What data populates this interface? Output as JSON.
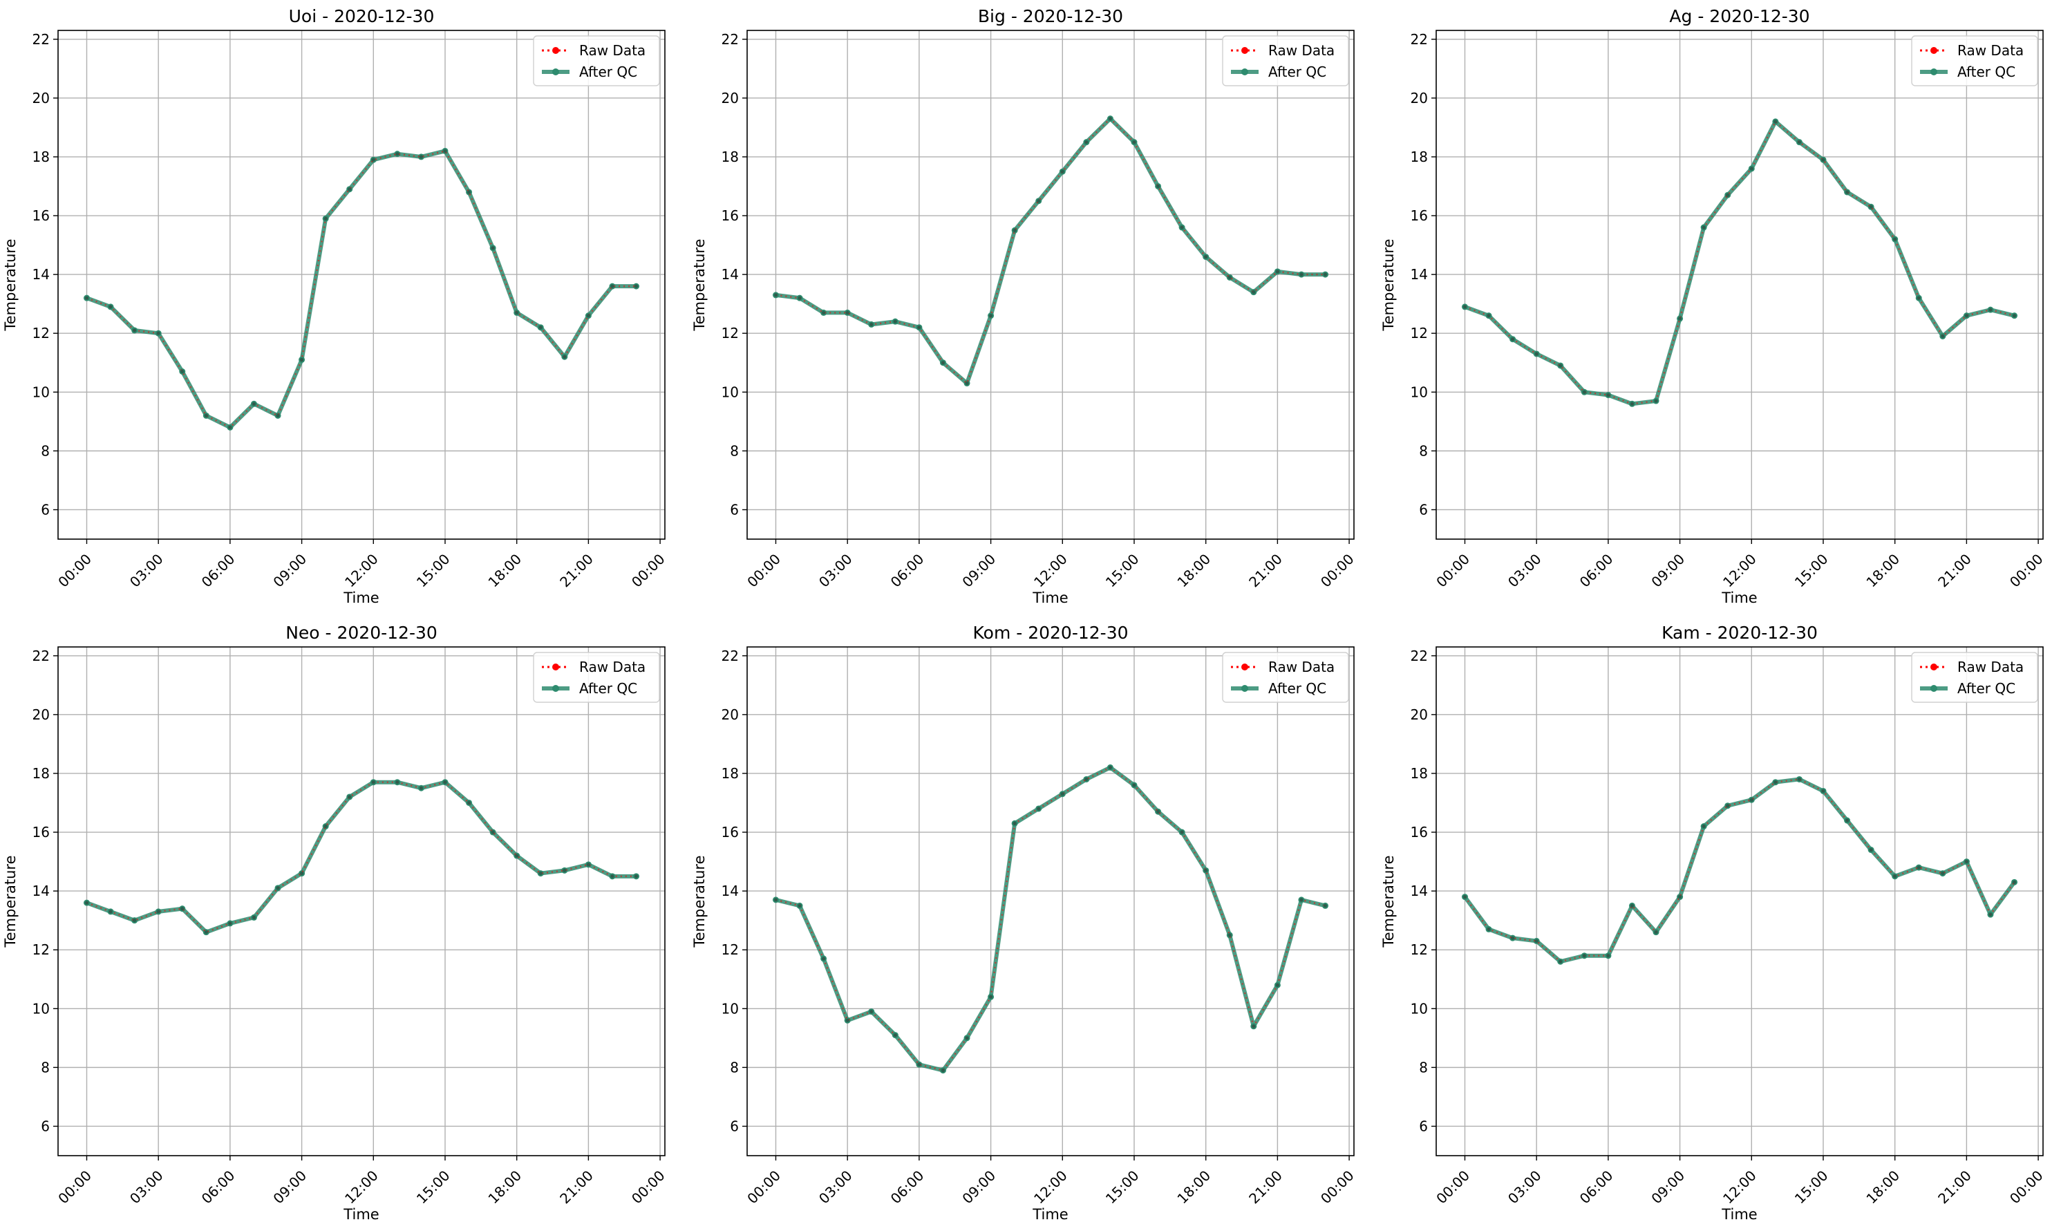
{
  "figure": {
    "layout": "2x3 grid",
    "background": "#ffffff",
    "raw_color": "#ff0000",
    "qc_color": "#2e8b6e",
    "grid_color": "#b0b0b0"
  },
  "chart_data": [
    {
      "type": "line",
      "title": "Uoi - 2020-12-30",
      "xlabel": "Time",
      "ylabel": "Temperature",
      "x_ticks": [
        "00:00",
        "03:00",
        "06:00",
        "09:00",
        "12:00",
        "15:00",
        "18:00",
        "21:00",
        "00:00"
      ],
      "y_ticks": [
        "6",
        "8",
        "10",
        "12",
        "14",
        "16",
        "18",
        "20",
        "22"
      ],
      "xlim": [
        -1.2,
        24.2
      ],
      "ylim": [
        5,
        22.3
      ],
      "grid": true,
      "legend_position": "top-right",
      "x": [
        0,
        1,
        2,
        3,
        4,
        5,
        6,
        7,
        8,
        9,
        10,
        11,
        12,
        13,
        14,
        15,
        16,
        17,
        18,
        19,
        20,
        21,
        22,
        23
      ],
      "series": [
        {
          "name": "Raw Data",
          "style": "dotted red with markers",
          "values": [
            13.2,
            12.9,
            12.1,
            12.0,
            10.7,
            9.2,
            8.8,
            9.6,
            9.2,
            11.1,
            15.9,
            16.9,
            17.9,
            18.1,
            18.0,
            18.2,
            16.8,
            14.9,
            12.7,
            12.2,
            11.2,
            12.6,
            13.6,
            13.6
          ]
        },
        {
          "name": "After QC",
          "style": "solid green with markers",
          "values": [
            13.2,
            12.9,
            12.1,
            12.0,
            10.7,
            9.2,
            8.8,
            9.6,
            9.2,
            11.1,
            15.9,
            16.9,
            17.9,
            18.1,
            18.0,
            18.2,
            16.8,
            14.9,
            12.7,
            12.2,
            11.2,
            12.6,
            13.6,
            13.6
          ]
        }
      ]
    },
    {
      "type": "line",
      "title": "Big - 2020-12-30",
      "xlabel": "Time",
      "ylabel": "Temperature",
      "x_ticks": [
        "00:00",
        "03:00",
        "06:00",
        "09:00",
        "12:00",
        "15:00",
        "18:00",
        "21:00",
        "00:00"
      ],
      "y_ticks": [
        "6",
        "8",
        "10",
        "12",
        "14",
        "16",
        "18",
        "20",
        "22"
      ],
      "xlim": [
        -1.2,
        24.2
      ],
      "ylim": [
        5,
        22.3
      ],
      "grid": true,
      "legend_position": "top-right",
      "x": [
        0,
        1,
        2,
        3,
        4,
        5,
        6,
        7,
        8,
        9,
        10,
        11,
        12,
        13,
        14,
        15,
        16,
        17,
        18,
        19,
        20,
        21,
        22,
        23
      ],
      "series": [
        {
          "name": "Raw Data",
          "style": "dotted red with markers",
          "values": [
            13.3,
            13.2,
            12.7,
            12.7,
            12.3,
            12.4,
            12.2,
            11.0,
            10.3,
            12.6,
            15.5,
            16.5,
            17.5,
            18.5,
            19.3,
            18.5,
            17.0,
            15.6,
            14.6,
            13.9,
            13.4,
            14.1,
            14.0,
            14.0
          ]
        },
        {
          "name": "After QC",
          "style": "solid green with markers",
          "values": [
            13.3,
            13.2,
            12.7,
            12.7,
            12.3,
            12.4,
            12.2,
            11.0,
            10.3,
            12.6,
            15.5,
            16.5,
            17.5,
            18.5,
            19.3,
            18.5,
            17.0,
            15.6,
            14.6,
            13.9,
            13.4,
            14.1,
            14.0,
            14.0
          ]
        }
      ]
    },
    {
      "type": "line",
      "title": "Ag - 2020-12-30",
      "xlabel": "Time",
      "ylabel": "Temperature",
      "x_ticks": [
        "00:00",
        "03:00",
        "06:00",
        "09:00",
        "12:00",
        "15:00",
        "18:00",
        "21:00",
        "00:00"
      ],
      "y_ticks": [
        "6",
        "8",
        "10",
        "12",
        "14",
        "16",
        "18",
        "20",
        "22"
      ],
      "xlim": [
        -1.2,
        24.2
      ],
      "ylim": [
        5,
        22.3
      ],
      "grid": true,
      "legend_position": "top-right",
      "x": [
        0,
        1,
        2,
        3,
        4,
        5,
        6,
        7,
        8,
        9,
        10,
        11,
        12,
        13,
        14,
        15,
        16,
        17,
        18,
        19,
        20,
        21,
        22,
        23
      ],
      "series": [
        {
          "name": "Raw Data",
          "style": "dotted red with markers",
          "values": [
            12.9,
            12.6,
            11.8,
            11.3,
            10.9,
            10.0,
            9.9,
            9.6,
            9.7,
            12.5,
            15.6,
            16.7,
            17.6,
            19.2,
            18.5,
            17.9,
            16.8,
            16.3,
            15.2,
            13.2,
            11.9,
            12.6,
            12.8,
            12.6
          ]
        },
        {
          "name": "After QC",
          "style": "solid green with markers",
          "values": [
            12.9,
            12.6,
            11.8,
            11.3,
            10.9,
            10.0,
            9.9,
            9.6,
            9.7,
            12.5,
            15.6,
            16.7,
            17.6,
            19.2,
            18.5,
            17.9,
            16.8,
            16.3,
            15.2,
            13.2,
            11.9,
            12.6,
            12.8,
            12.6
          ]
        }
      ]
    },
    {
      "type": "line",
      "title": "Neo - 2020-12-30",
      "xlabel": "Time",
      "ylabel": "Temperature",
      "x_ticks": [
        "00:00",
        "03:00",
        "06:00",
        "09:00",
        "12:00",
        "15:00",
        "18:00",
        "21:00",
        "00:00"
      ],
      "y_ticks": [
        "6",
        "8",
        "10",
        "12",
        "14",
        "16",
        "18",
        "20",
        "22"
      ],
      "xlim": [
        -1.2,
        24.2
      ],
      "ylim": [
        5,
        22.3
      ],
      "grid": true,
      "legend_position": "top-right",
      "x": [
        0,
        1,
        2,
        3,
        4,
        5,
        6,
        7,
        8,
        9,
        10,
        11,
        12,
        13,
        14,
        15,
        16,
        17,
        18,
        19,
        20,
        21,
        22,
        23
      ],
      "series": [
        {
          "name": "Raw Data",
          "style": "dotted red with markers",
          "values": [
            13.6,
            13.3,
            13.0,
            13.3,
            13.4,
            12.6,
            12.9,
            13.1,
            14.1,
            14.6,
            16.2,
            17.2,
            17.7,
            17.7,
            17.5,
            17.7,
            17.0,
            16.0,
            15.2,
            14.6,
            14.7,
            14.9,
            14.5,
            14.5
          ]
        },
        {
          "name": "After QC",
          "style": "solid green with markers",
          "values": [
            13.6,
            13.3,
            13.0,
            13.3,
            13.4,
            12.6,
            12.9,
            13.1,
            14.1,
            14.6,
            16.2,
            17.2,
            17.7,
            17.7,
            17.5,
            17.7,
            17.0,
            16.0,
            15.2,
            14.6,
            14.7,
            14.9,
            14.5,
            14.5
          ]
        }
      ]
    },
    {
      "type": "line",
      "title": "Kom - 2020-12-30",
      "xlabel": "Time",
      "ylabel": "Temperature",
      "x_ticks": [
        "00:00",
        "03:00",
        "06:00",
        "09:00",
        "12:00",
        "15:00",
        "18:00",
        "21:00",
        "00:00"
      ],
      "y_ticks": [
        "6",
        "8",
        "10",
        "12",
        "14",
        "16",
        "18",
        "20",
        "22"
      ],
      "xlim": [
        -1.2,
        24.2
      ],
      "ylim": [
        5,
        22.3
      ],
      "grid": true,
      "legend_position": "top-right",
      "x": [
        0,
        1,
        2,
        3,
        4,
        5,
        6,
        7,
        8,
        9,
        10,
        11,
        12,
        13,
        14,
        15,
        16,
        17,
        18,
        19,
        20,
        21,
        22,
        23
      ],
      "series": [
        {
          "name": "Raw Data",
          "style": "dotted red with markers",
          "values": [
            13.7,
            13.5,
            11.7,
            9.6,
            9.9,
            9.1,
            8.1,
            7.9,
            9.0,
            10.4,
            16.3,
            16.8,
            17.3,
            17.8,
            18.2,
            17.6,
            16.7,
            16.0,
            14.7,
            12.5,
            9.4,
            10.8,
            13.7,
            13.5
          ]
        },
        {
          "name": "After QC",
          "style": "solid green with markers",
          "values": [
            13.7,
            13.5,
            11.7,
            9.6,
            9.9,
            9.1,
            8.1,
            7.9,
            9.0,
            10.4,
            16.3,
            16.8,
            17.3,
            17.8,
            18.2,
            17.6,
            16.7,
            16.0,
            14.7,
            12.5,
            9.4,
            10.8,
            13.7,
            13.5
          ]
        }
      ]
    },
    {
      "type": "line",
      "title": "Kam - 2020-12-30",
      "xlabel": "Time",
      "ylabel": "Temperature",
      "x_ticks": [
        "00:00",
        "03:00",
        "06:00",
        "09:00",
        "12:00",
        "15:00",
        "18:00",
        "21:00",
        "00:00"
      ],
      "y_ticks": [
        "6",
        "8",
        "10",
        "12",
        "14",
        "16",
        "18",
        "20",
        "22"
      ],
      "xlim": [
        -1.2,
        24.2
      ],
      "ylim": [
        5,
        22.3
      ],
      "grid": true,
      "legend_position": "top-right",
      "x": [
        0,
        1,
        2,
        3,
        4,
        5,
        6,
        7,
        8,
        9,
        10,
        11,
        12,
        13,
        14,
        15,
        16,
        17,
        18,
        19,
        20,
        21,
        22,
        23
      ],
      "series": [
        {
          "name": "Raw Data",
          "style": "dotted red with markers",
          "values": [
            13.8,
            12.7,
            12.4,
            12.3,
            11.6,
            11.8,
            11.8,
            13.5,
            12.6,
            13.8,
            16.2,
            16.9,
            17.1,
            17.7,
            17.8,
            17.4,
            16.4,
            15.4,
            14.5,
            14.8,
            14.6,
            15.0,
            13.2,
            14.3
          ]
        },
        {
          "name": "After QC",
          "style": "solid green with markers",
          "values": [
            13.8,
            12.7,
            12.4,
            12.3,
            11.6,
            11.8,
            11.8,
            13.5,
            12.6,
            13.8,
            16.2,
            16.9,
            17.1,
            17.7,
            17.8,
            17.4,
            16.4,
            15.4,
            14.5,
            14.8,
            14.6,
            15.0,
            13.2,
            14.3
          ]
        }
      ]
    }
  ]
}
